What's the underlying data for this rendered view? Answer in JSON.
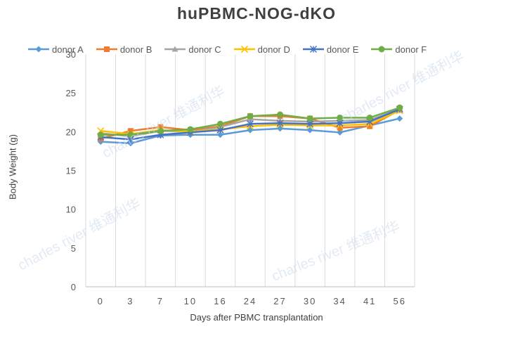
{
  "chart_data": {
    "type": "line",
    "title": "huPBMC-NOG-dKO",
    "xlabel": "Days after PBMC transplantation",
    "ylabel": "Body Weight (g)",
    "categories": [
      "0",
      "3",
      "7",
      "10",
      "16",
      "24",
      "27",
      "30",
      "34",
      "41",
      "56"
    ],
    "ylim": [
      0,
      30
    ],
    "yticks": [
      0,
      5,
      10,
      15,
      20,
      25,
      30
    ],
    "grid": "vertical",
    "legend_position": "top",
    "series": [
      {
        "name": "donor A",
        "color": "#5B9BD5",
        "marker": "diamond",
        "values": [
          18.7,
          18.5,
          19.5,
          19.6,
          19.6,
          20.2,
          20.4,
          20.2,
          19.9,
          20.8,
          21.7
        ]
      },
      {
        "name": "donor B",
        "color": "#ED7D31",
        "marker": "square",
        "values": [
          19.1,
          20.1,
          20.6,
          20.2,
          20.7,
          22.0,
          22.0,
          21.7,
          20.5,
          20.7,
          22.8
        ]
      },
      {
        "name": "donor C",
        "color": "#A5A5A5",
        "marker": "triangle",
        "values": [
          19.8,
          19.4,
          20.1,
          20.0,
          20.6,
          21.6,
          21.4,
          21.3,
          21.4,
          21.5,
          22.9
        ]
      },
      {
        "name": "donor D",
        "color": "#FFC000",
        "marker": "x",
        "values": [
          20.1,
          19.7,
          20.2,
          20.0,
          20.3,
          20.7,
          20.9,
          20.8,
          20.8,
          21.0,
          22.7
        ]
      },
      {
        "name": "donor E",
        "color": "#4472C4",
        "marker": "star",
        "values": [
          19.3,
          19.0,
          19.6,
          19.9,
          20.2,
          21.0,
          21.1,
          21.0,
          21.1,
          21.3,
          22.9
        ]
      },
      {
        "name": "donor F",
        "color": "#70AD47",
        "marker": "circle",
        "values": [
          19.6,
          19.6,
          20.1,
          20.3,
          21.0,
          22.0,
          22.2,
          21.7,
          21.8,
          21.8,
          23.1
        ]
      }
    ],
    "watermark": "charles river 维通利华"
  }
}
